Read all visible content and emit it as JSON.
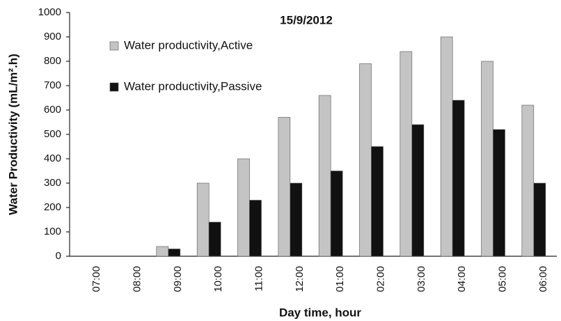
{
  "chart_data": {
    "type": "bar",
    "title": "15/9/2012",
    "xlabel": "Day time, hour",
    "ylabel": "Water Productivity (mL/m².h)",
    "categories": [
      "07:00",
      "08:00",
      "09:00",
      "10:00",
      "11:00",
      "12:00",
      "01:00",
      "02:00",
      "03:00",
      "04:00",
      "05:00",
      "06:00"
    ],
    "series": [
      {
        "name": "Water  productivity,Active",
        "color": "#c4c4c4",
        "values": [
          0,
          0,
          40,
          300,
          400,
          570,
          660,
          790,
          840,
          900,
          800,
          620
        ]
      },
      {
        "name": "Water productivity,Passive",
        "color": "#111111",
        "values": [
          0,
          0,
          30,
          140,
          230,
          300,
          350,
          450,
          540,
          640,
          520,
          300
        ]
      }
    ],
    "ylim": [
      0,
      1000
    ],
    "yticks": [
      0,
      100,
      200,
      300,
      400,
      500,
      600,
      700,
      800,
      900,
      1000
    ],
    "grid": false,
    "legend": "upper left"
  }
}
